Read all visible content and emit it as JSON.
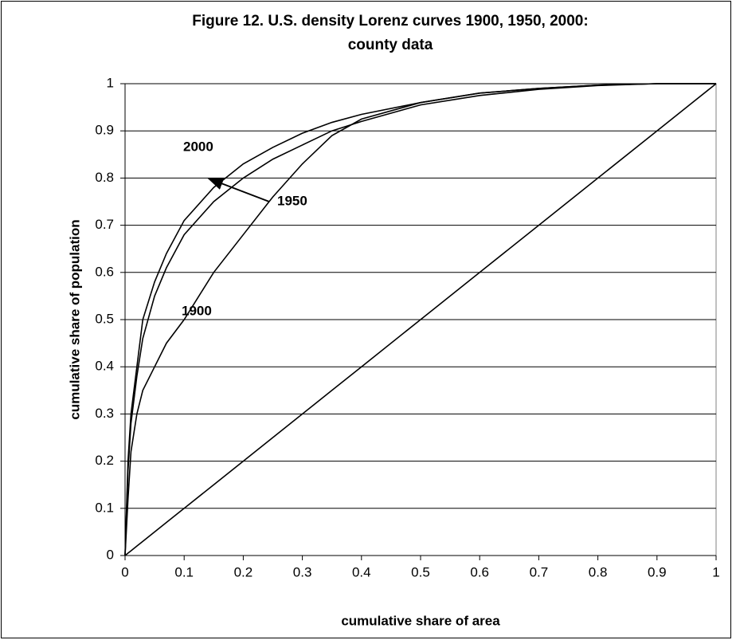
{
  "chart_data": {
    "type": "line",
    "title": [
      "Figure 12. U.S. density Lorenz curves 1900, 1950, 2000:",
      "county data"
    ],
    "xlabel": "cumulative share of area",
    "ylabel": "cumulative share of population",
    "x": [
      0,
      0.005,
      0.01,
      0.02,
      0.03,
      0.05,
      0.07,
      0.1,
      0.15,
      0.2,
      0.25,
      0.3,
      0.35,
      0.4,
      0.5,
      0.6,
      0.7,
      0.8,
      0.9,
      1
    ],
    "series": [
      {
        "name": "2000",
        "color": "#000000",
        "values": [
          0,
          0.2,
          0.3,
          0.4,
          0.5,
          0.58,
          0.64,
          0.71,
          0.78,
          0.83,
          0.865,
          0.895,
          0.918,
          0.935,
          0.96,
          0.98,
          0.99,
          0.997,
          1,
          1
        ]
      },
      {
        "name": "1950",
        "color": "#000000",
        "values": [
          0,
          0.18,
          0.28,
          0.38,
          0.46,
          0.55,
          0.61,
          0.68,
          0.75,
          0.8,
          0.84,
          0.87,
          0.9,
          0.92,
          0.955,
          0.975,
          0.988,
          0.996,
          1,
          1
        ]
      },
      {
        "name": "1900",
        "color": "#000000",
        "values": [
          0,
          0.12,
          0.22,
          0.3,
          0.35,
          0.4,
          0.45,
          0.5,
          0.6,
          0.68,
          0.76,
          0.83,
          0.89,
          0.925,
          0.96,
          0.98,
          0.99,
          0.997,
          1,
          1
        ]
      },
      {
        "color": "#000000",
        "values": [
          0,
          0.005,
          0.01,
          0.02,
          0.03,
          0.05,
          0.07,
          0.1,
          0.15,
          0.2,
          0.25,
          0.3,
          0.35,
          0.4,
          0.5,
          0.6,
          0.7,
          0.8,
          0.9,
          1
        ]
      }
    ],
    "xlim": [
      0,
      1
    ],
    "ylim": [
      0,
      1
    ],
    "xticks": [
      0,
      0.1,
      0.2,
      0.3,
      0.4,
      0.5,
      0.6,
      0.7,
      0.8,
      0.9,
      1
    ],
    "yticks": [
      0,
      0.1,
      0.2,
      0.3,
      0.4,
      0.5,
      0.6,
      0.7,
      0.8,
      0.9,
      1
    ],
    "grid": true
  }
}
